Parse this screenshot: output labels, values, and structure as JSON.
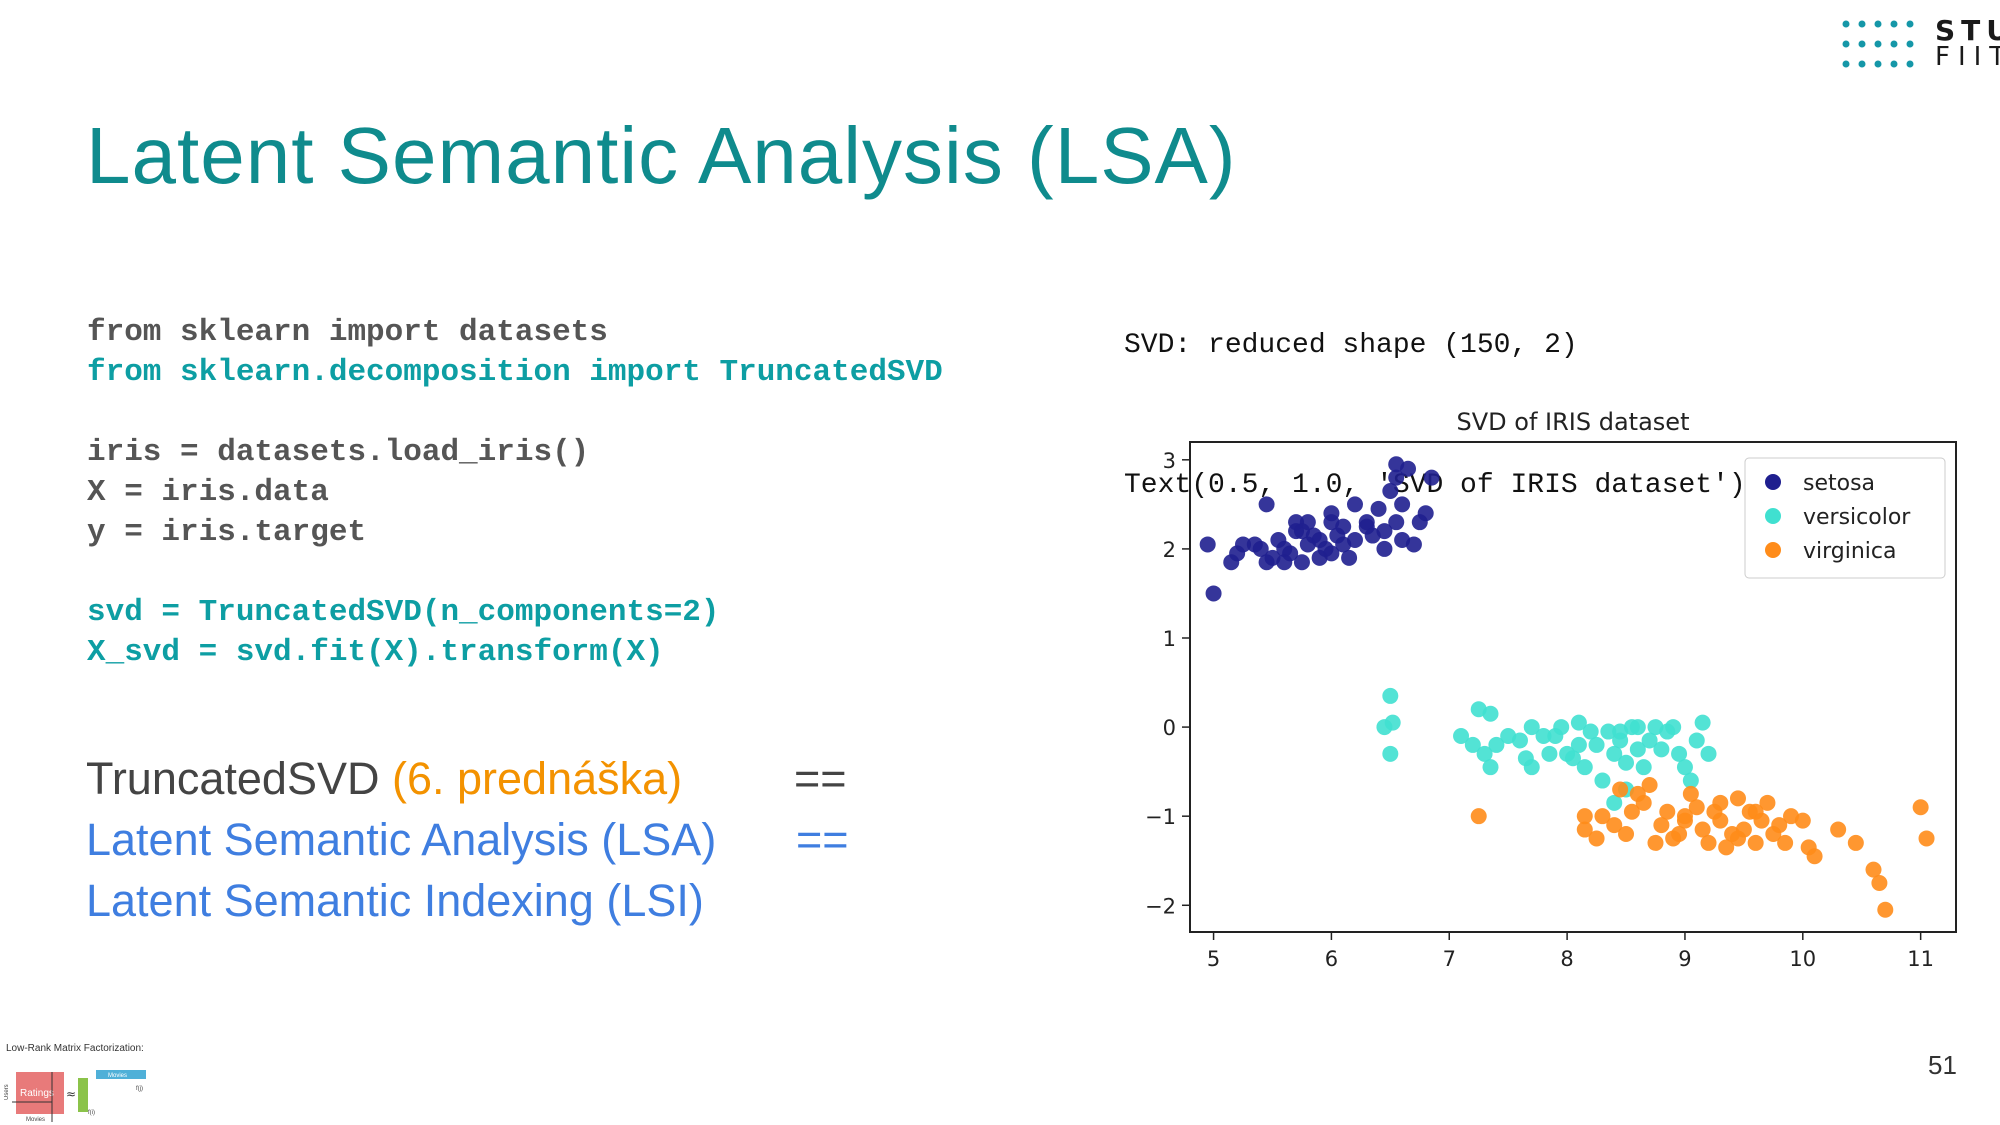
{
  "logo": {
    "line1": "STU",
    "line2": "FIIT"
  },
  "slide": {
    "title": "Latent Semantic Analysis (LSA)",
    "page_number": "51"
  },
  "code_lines": [
    {
      "text": "from sklearn import datasets",
      "highlight": false
    },
    {
      "text": "from sklearn.decomposition import TruncatedSVD",
      "highlight": true
    },
    {
      "text": "",
      "highlight": false
    },
    {
      "text": "iris = datasets.load_iris()",
      "highlight": false
    },
    {
      "text": "X = iris.data",
      "highlight": false
    },
    {
      "text": "y = iris.target",
      "highlight": false
    },
    {
      "text": "",
      "highlight": false
    },
    {
      "text": "svd = TruncatedSVD(n_components=2)",
      "highlight": true
    },
    {
      "text": "X_svd = svd.fit(X).transform(X)",
      "highlight": true
    }
  ],
  "equivalence": {
    "line1_main": "TruncatedSVD",
    "line1_paren": "(6. prednáška)",
    "line1_op": "==",
    "line2": "Latent Semantic Analysis (LSA)",
    "line2_op": "==",
    "line3": "Latent Semantic Indexing (LSI)"
  },
  "output_lines": [
    "SVD: reduced shape (150, 2)",
    "Text(0.5, 1.0, 'SVD of IRIS dataset')"
  ],
  "thumbnail": {
    "caption": "Low-Rank Matrix Factorization:",
    "ratings": "Ratings",
    "users": "Users",
    "movies": "Movies",
    "approx": "≈",
    "fu": "f(i)",
    "fm": "f(j)"
  },
  "colors": {
    "title": "#0f8b8d",
    "code_highlight": "#0d9ea3",
    "orange": "#f39200",
    "blue": "#3f7ee0",
    "setosa": "#1f1f8f",
    "versicolor": "#40e0d0",
    "virginica": "#ff8c1a"
  },
  "chart_data": {
    "type": "scatter",
    "title": "SVD of IRIS dataset",
    "xlim": [
      4.8,
      11.3
    ],
    "ylim": [
      -2.3,
      3.2
    ],
    "xticks": [
      5,
      6,
      7,
      8,
      9,
      10,
      11
    ],
    "yticks": [
      3,
      2,
      1,
      0,
      -1,
      -2
    ],
    "ytick_labels": [
      "3",
      "2",
      "1",
      "0",
      "−1",
      "−2"
    ],
    "legend_position": "top-right",
    "grid": false,
    "series": [
      {
        "name": "setosa",
        "color": "#1f1f8f",
        "points": [
          [
            4.95,
            2.05
          ],
          [
            5.0,
            1.5
          ],
          [
            5.2,
            1.95
          ],
          [
            5.25,
            2.05
          ],
          [
            5.15,
            1.85
          ],
          [
            5.45,
            2.5
          ],
          [
            5.4,
            2.0
          ],
          [
            5.5,
            1.9
          ],
          [
            5.45,
            1.85
          ],
          [
            5.55,
            2.1
          ],
          [
            5.6,
            2.0
          ],
          [
            5.65,
            1.95
          ],
          [
            5.7,
            2.2
          ],
          [
            5.75,
            1.85
          ],
          [
            5.8,
            2.05
          ],
          [
            5.8,
            2.3
          ],
          [
            5.85,
            2.15
          ],
          [
            5.9,
            1.9
          ],
          [
            5.95,
            2.0
          ],
          [
            6.0,
            2.3
          ],
          [
            6.05,
            2.15
          ],
          [
            6.1,
            2.25
          ],
          [
            6.0,
            1.95
          ],
          [
            6.15,
            1.9
          ],
          [
            6.2,
            2.1
          ],
          [
            6.3,
            2.3
          ],
          [
            6.35,
            2.15
          ],
          [
            6.4,
            2.45
          ],
          [
            6.45,
            2.0
          ],
          [
            6.5,
            2.65
          ],
          [
            6.55,
            2.3
          ],
          [
            6.6,
            2.5
          ],
          [
            6.6,
            2.1
          ],
          [
            6.7,
            2.05
          ],
          [
            6.75,
            2.3
          ],
          [
            6.55,
            2.8
          ],
          [
            6.55,
            2.95
          ],
          [
            6.65,
            2.9
          ],
          [
            6.8,
            2.4
          ],
          [
            6.85,
            2.8
          ],
          [
            6.3,
            2.25
          ],
          [
            6.2,
            2.5
          ],
          [
            6.45,
            2.2
          ],
          [
            5.9,
            2.1
          ],
          [
            5.7,
            2.3
          ],
          [
            6.1,
            2.05
          ],
          [
            5.6,
            1.85
          ],
          [
            5.35,
            2.05
          ],
          [
            6.0,
            2.4
          ],
          [
            5.75,
            2.2
          ]
        ]
      },
      {
        "name": "versicolor",
        "color": "#40e0d0",
        "points": [
          [
            6.45,
            0.0
          ],
          [
            6.5,
            0.35
          ],
          [
            6.5,
            -0.3
          ],
          [
            6.52,
            0.05
          ],
          [
            7.1,
            -0.1
          ],
          [
            7.2,
            -0.2
          ],
          [
            7.25,
            0.2
          ],
          [
            7.35,
            0.15
          ],
          [
            7.3,
            -0.3
          ],
          [
            7.35,
            -0.45
          ],
          [
            7.4,
            -0.2
          ],
          [
            7.6,
            -0.15
          ],
          [
            7.65,
            -0.35
          ],
          [
            7.7,
            0.0
          ],
          [
            7.7,
            -0.45
          ],
          [
            7.8,
            -0.1
          ],
          [
            7.85,
            -0.3
          ],
          [
            7.9,
            -0.1
          ],
          [
            7.95,
            0.0
          ],
          [
            8.0,
            -0.3
          ],
          [
            8.1,
            -0.2
          ],
          [
            8.1,
            0.05
          ],
          [
            8.15,
            -0.45
          ],
          [
            8.2,
            -0.05
          ],
          [
            8.25,
            -0.2
          ],
          [
            8.3,
            -0.6
          ],
          [
            8.35,
            -0.05
          ],
          [
            8.4,
            -0.3
          ],
          [
            8.45,
            -0.15
          ],
          [
            8.5,
            -0.4
          ],
          [
            8.55,
            0.0
          ],
          [
            8.6,
            -0.25
          ],
          [
            8.65,
            -0.45
          ],
          [
            8.7,
            -0.15
          ],
          [
            8.75,
            0.0
          ],
          [
            8.8,
            -0.25
          ],
          [
            8.85,
            -0.05
          ],
          [
            8.9,
            0.0
          ],
          [
            8.95,
            -0.3
          ],
          [
            9.0,
            -0.45
          ],
          [
            9.05,
            -0.6
          ],
          [
            9.1,
            -0.15
          ],
          [
            9.15,
            0.05
          ],
          [
            9.2,
            -0.3
          ],
          [
            8.4,
            -0.85
          ],
          [
            8.5,
            -0.7
          ],
          [
            8.45,
            -0.05
          ],
          [
            7.5,
            -0.1
          ],
          [
            8.6,
            0.0
          ],
          [
            8.05,
            -0.35
          ]
        ]
      },
      {
        "name": "virginica",
        "color": "#ff8c1a",
        "points": [
          [
            7.25,
            -1.0
          ],
          [
            8.15,
            -1.15
          ],
          [
            8.15,
            -1.0
          ],
          [
            8.25,
            -1.25
          ],
          [
            8.3,
            -1.0
          ],
          [
            8.4,
            -1.1
          ],
          [
            8.45,
            -0.7
          ],
          [
            8.5,
            -1.2
          ],
          [
            8.55,
            -0.95
          ],
          [
            8.6,
            -0.75
          ],
          [
            8.65,
            -0.85
          ],
          [
            8.7,
            -0.65
          ],
          [
            8.75,
            -1.3
          ],
          [
            8.85,
            -0.95
          ],
          [
            8.9,
            -1.25
          ],
          [
            9.0,
            -1.05
          ],
          [
            9.05,
            -0.75
          ],
          [
            9.1,
            -0.9
          ],
          [
            9.15,
            -1.15
          ],
          [
            9.2,
            -1.3
          ],
          [
            9.25,
            -0.95
          ],
          [
            9.3,
            -0.85
          ],
          [
            9.35,
            -1.35
          ],
          [
            9.4,
            -1.2
          ],
          [
            9.45,
            -0.8
          ],
          [
            9.5,
            -1.15
          ],
          [
            9.55,
            -0.95
          ],
          [
            9.6,
            -1.3
          ],
          [
            9.65,
            -1.05
          ],
          [
            9.7,
            -0.85
          ],
          [
            9.75,
            -1.2
          ],
          [
            9.8,
            -1.1
          ],
          [
            9.85,
            -1.3
          ],
          [
            9.9,
            -1.0
          ],
          [
            10.0,
            -1.05
          ],
          [
            10.05,
            -1.35
          ],
          [
            10.1,
            -1.45
          ],
          [
            10.3,
            -1.15
          ],
          [
            10.45,
            -1.3
          ],
          [
            10.6,
            -1.6
          ],
          [
            10.65,
            -1.75
          ],
          [
            10.7,
            -2.05
          ],
          [
            11.0,
            -0.9
          ],
          [
            11.05,
            -1.25
          ],
          [
            9.0,
            -1.0
          ],
          [
            8.95,
            -1.2
          ],
          [
            9.45,
            -1.25
          ],
          [
            9.3,
            -1.05
          ],
          [
            9.6,
            -0.95
          ],
          [
            8.8,
            -1.1
          ]
        ]
      }
    ]
  }
}
